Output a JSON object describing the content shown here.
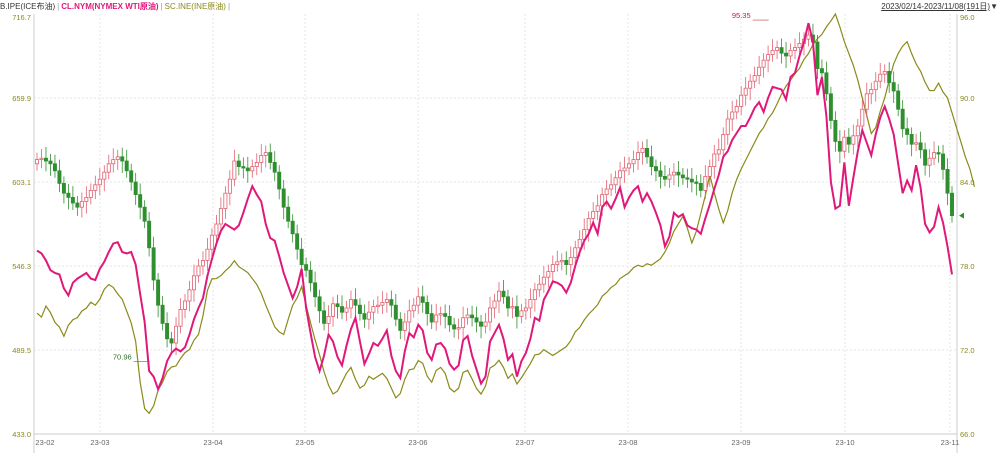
{
  "header": {
    "series_labels": [
      "B.IPE(ICE布油)",
      "CL.NYM(NYMEX WTI原油)",
      "SC.INE(INE原油)"
    ],
    "date_range": "2023/02/14-2023/11/08(191日)",
    "dropdown_icon": "caret-down-icon"
  },
  "chart_data": {
    "type": "line",
    "colors": {
      "B.IPE": "#2f8f2f",
      "B.IPE_up": "#e06070",
      "CL.NYM": "#e0187a",
      "SC.INE": "#8a8a1a",
      "grid": "#e4e4e4"
    },
    "left_axis": {
      "ticks": [
        "716.7",
        "659.9",
        "603.1",
        "546.3",
        "489.5",
        "433.0"
      ],
      "range": [
        433.0,
        716.7
      ]
    },
    "right_axis": {
      "ticks": [
        "96.0",
        "90.0",
        "84.0",
        "78.0",
        "72.0",
        "66.0"
      ],
      "range": [
        66.0,
        96.0
      ]
    },
    "x_ticks": [
      "23-02",
      "23-03",
      "23-04",
      "23-05",
      "23-06",
      "23-07",
      "23-08",
      "23-09",
      "23-10",
      "23-11"
    ],
    "annotations": [
      {
        "text": "95.35",
        "series": "CL.NYM",
        "value": 95.35,
        "x_index": 160
      },
      {
        "text": "70.96",
        "series": "B.IPE",
        "value": 70.96,
        "x_index": 22
      }
    ],
    "series": [
      {
        "name": "CL.NYM(NYMEX WTI原油)",
        "axis": "right",
        "values": [
          79.1,
          78.9,
          78.4,
          77.7,
          77.5,
          77.4,
          76.4,
          75.9,
          76.8,
          77.1,
          77.3,
          77.5,
          77.1,
          77.0,
          77.8,
          78.3,
          79.0,
          79.6,
          79.7,
          79.0,
          78.9,
          79.0,
          78.1,
          76.0,
          74.0,
          70.5,
          70.1,
          69.2,
          70.0,
          71.2,
          71.8,
          72.1,
          71.9,
          72.2,
          73.1,
          74.2,
          75.0,
          75.7,
          77.3,
          78.5,
          79.6,
          80.5,
          81.0,
          80.8,
          80.6,
          80.9,
          81.8,
          82.8,
          83.7,
          83.1,
          82.6,
          81.0,
          80.0,
          79.8,
          78.7,
          77.5,
          76.6,
          75.7,
          76.5,
          77.8,
          75.0,
          73.2,
          71.5,
          70.5,
          71.6,
          73.1,
          72.6,
          71.5,
          70.9,
          72.3,
          73.5,
          74.3,
          72.6,
          71.0,
          71.7,
          72.5,
          72.3,
          72.8,
          73.4,
          71.6,
          70.5,
          70.0,
          71.9,
          73.2,
          72.9,
          73.8,
          73.4,
          71.8,
          71.3,
          72.4,
          72.5,
          72.1,
          71.0,
          70.6,
          70.9,
          72.7,
          73.0,
          71.6,
          70.6,
          69.6,
          70.1,
          72.6,
          73.2,
          73.8,
          72.8,
          71.3,
          71.7,
          70.1,
          71.2,
          71.8,
          72.8,
          74.3,
          74.1,
          75.6,
          76.2,
          76.9,
          76.8,
          76.6,
          76.1,
          76.8,
          78.0,
          79.0,
          79.8,
          80.3,
          81.1,
          80.3,
          82.2,
          82.6,
          82.1,
          82.8,
          83.6,
          82.2,
          82.9,
          83.4,
          83.7,
          82.6,
          83.2,
          82.6,
          81.8,
          80.9,
          79.4,
          80.1,
          81.8,
          81.5,
          81.7,
          80.9,
          80.7,
          80.6,
          80.3,
          81.4,
          82.4,
          83.5,
          84.5,
          85.8,
          86.2,
          87.0,
          87.5,
          88.0,
          88.0,
          88.6,
          89.3,
          89.7,
          89.0,
          90.0,
          90.8,
          90.7,
          90.6,
          89.9,
          91.5,
          91.8,
          93.0,
          94.0,
          95.35,
          94.0,
          90.2,
          91.5,
          88.7,
          84.0,
          82.1,
          82.3,
          85.4,
          82.3,
          84.3,
          86.2,
          87.7,
          86.8,
          85.9,
          87.4,
          88.6,
          89.4,
          88.5,
          87.4,
          85.3,
          83.2,
          84.1,
          83.4,
          85.2,
          83.6,
          81.0,
          80.4,
          80.8,
          82.2,
          81.1,
          79.4,
          77.4
        ],
        "close": 77.4
      },
      {
        "name": "SC.INE(INE原油)",
        "axis": "left",
        "values": [
          514.6,
          512.0,
          519.4,
          515.0,
          508.4,
          505.2,
          499.0,
          506.5,
          510.2,
          511.6,
          516.0,
          518.0,
          522.0,
          520.0,
          524.0,
          530.8,
          534.0,
          532.0,
          527.6,
          524.0,
          516.0,
          508.0,
          495.4,
          468.0,
          450.2,
          447.0,
          452.0,
          462.6,
          468.0,
          475.2,
          478.2,
          479.0,
          484.0,
          488.0,
          490.0,
          496.4,
          500.2,
          512.8,
          530.0,
          537.8,
          538.0,
          540.0,
          543.2,
          546.0,
          550.0,
          546.0,
          544.0,
          542.0,
          538.0,
          534.0,
          528.0,
          520.0,
          512.8,
          505.4,
          502.0,
          500.2,
          510.4,
          520.0,
          525.0,
          532.6,
          520.0,
          508.0,
          496.6,
          486.4,
          475.0,
          466.0,
          460.0,
          462.0,
          468.0,
          474.0,
          478.0,
          470.0,
          464.0,
          466.0,
          472.0,
          470.0,
          472.0,
          474.0,
          470.6,
          464.0,
          457.4,
          460.4,
          470.0,
          476.4,
          477.0,
          482.6,
          480.8,
          472.0,
          468.0,
          476.0,
          478.0,
          474.0,
          464.0,
          461.4,
          464.0,
          474.6,
          476.0,
          470.2,
          463.6,
          460.0,
          465.4,
          477.6,
          479.4,
          482.8,
          478.0,
          470.6,
          473.6,
          466.8,
          471.0,
          475.8,
          480.6,
          486.4,
          487.0,
          490.0,
          488.0,
          486.0,
          488.0,
          490.0,
          492.0,
          496.0,
          502.0,
          505.0,
          510.0,
          514.0,
          517.0,
          520.4,
          526.0,
          528.6,
          532.0,
          534.0,
          538.0,
          540.0,
          542.0,
          545.4,
          547.0,
          546.0,
          548.0,
          547.0,
          549.2,
          551.4,
          556.0,
          562.0,
          570.0,
          575.0,
          580.0,
          572.0,
          562.0,
          570.0,
          582.0,
          594.0,
          608.0,
          596.0,
          585.0,
          575.6,
          584.0,
          596.0,
          605.0,
          612.0,
          618.0,
          624.0,
          630.0,
          636.0,
          640.0,
          646.0,
          650.0,
          656.0,
          662.6,
          668.0,
          672.0,
          676.4,
          680.0,
          686.0,
          690.0,
          696.0,
          700.0,
          703.0,
          708.0,
          712.0,
          716.7,
          708.0,
          698.0,
          690.0,
          682.0,
          672.0,
          660.0,
          648.0,
          636.0,
          640.0,
          651.0,
          660.0,
          672.0,
          683.0,
          690.0,
          695.0,
          698.0,
          690.0,
          683.0,
          678.0,
          670.6,
          665.0,
          665.0,
          670.0,
          664.0,
          660.0,
          650.0,
          640.0,
          630.0,
          620.0,
          612.0,
          600.0
        ],
        "close": 600.0
      },
      {
        "name": "B.IPE(ICE布油)",
        "axis": "right",
        "type": "candlestick",
        "values": [
          85.6,
          85.7,
          85.5,
          85.3,
          84.8,
          83.9,
          83.2,
          82.9,
          82.5,
          82.2,
          82.6,
          82.9,
          83.4,
          83.8,
          84.2,
          84.7,
          85.3,
          85.6,
          85.8,
          85.5,
          84.8,
          84.0,
          83.1,
          82.2,
          81.2,
          79.3,
          77.0,
          75.2,
          73.9,
          72.8,
          72.5,
          73.7,
          74.9,
          75.5,
          76.3,
          77.3,
          78.0,
          78.4,
          79.2,
          80.2,
          81.0,
          82.1,
          83.2,
          84.2,
          85.5,
          85.1,
          85.0,
          84.8,
          85.1,
          85.4,
          85.9,
          86.1,
          85.4,
          84.7,
          83.5,
          82.2,
          81.2,
          80.3,
          79.2,
          78.1,
          77.7,
          76.8,
          75.8,
          74.8,
          73.9,
          74.4,
          75.3,
          75.1,
          74.7,
          75.0,
          75.6,
          75.2,
          74.6,
          74.2,
          74.7,
          75.1,
          75.2,
          75.4,
          75.6,
          75.2,
          74.2,
          73.4,
          74.0,
          74.8,
          75.2,
          75.8,
          75.4,
          74.6,
          74.0,
          74.5,
          74.6,
          74.4,
          73.8,
          73.5,
          73.6,
          74.3,
          74.5,
          74.3,
          74.0,
          73.7,
          74.0,
          75.0,
          75.5,
          76.2,
          75.8,
          75.0,
          75.1,
          74.4,
          74.8,
          75.0,
          75.6,
          76.3,
          76.7,
          77.2,
          77.6,
          78.1,
          78.3,
          78.4,
          78.1,
          78.6,
          79.3,
          79.9,
          80.6,
          81.4,
          81.9,
          82.3,
          83.1,
          83.5,
          83.8,
          84.3,
          84.8,
          85.0,
          85.3,
          85.6,
          86.1,
          86.4,
          85.8,
          85.1,
          84.8,
          84.4,
          84.2,
          84.5,
          84.7,
          84.5,
          84.3,
          84.2,
          84.0,
          83.9,
          83.4,
          84.4,
          85.1,
          86.0,
          86.3,
          87.4,
          88.5,
          89.0,
          89.4,
          90.2,
          90.7,
          91.2,
          91.6,
          92.2,
          92.7,
          93.1,
          93.4,
          93.6,
          93.2,
          93.0,
          93.4,
          93.6,
          93.9,
          94.2,
          94.5,
          94.0,
          92.1,
          91.8,
          90.3,
          88.4,
          86.9,
          86.2,
          87.2,
          86.7,
          87.3,
          88.0,
          89.2,
          90.3,
          90.6,
          91.2,
          91.7,
          91.9,
          91.1,
          90.5,
          89.2,
          87.8,
          87.4,
          86.7,
          86.8,
          86.3,
          85.2,
          85.7,
          86.1,
          86.0,
          84.9,
          83.2,
          81.6
        ],
        "close": 81.6
      }
    ]
  }
}
